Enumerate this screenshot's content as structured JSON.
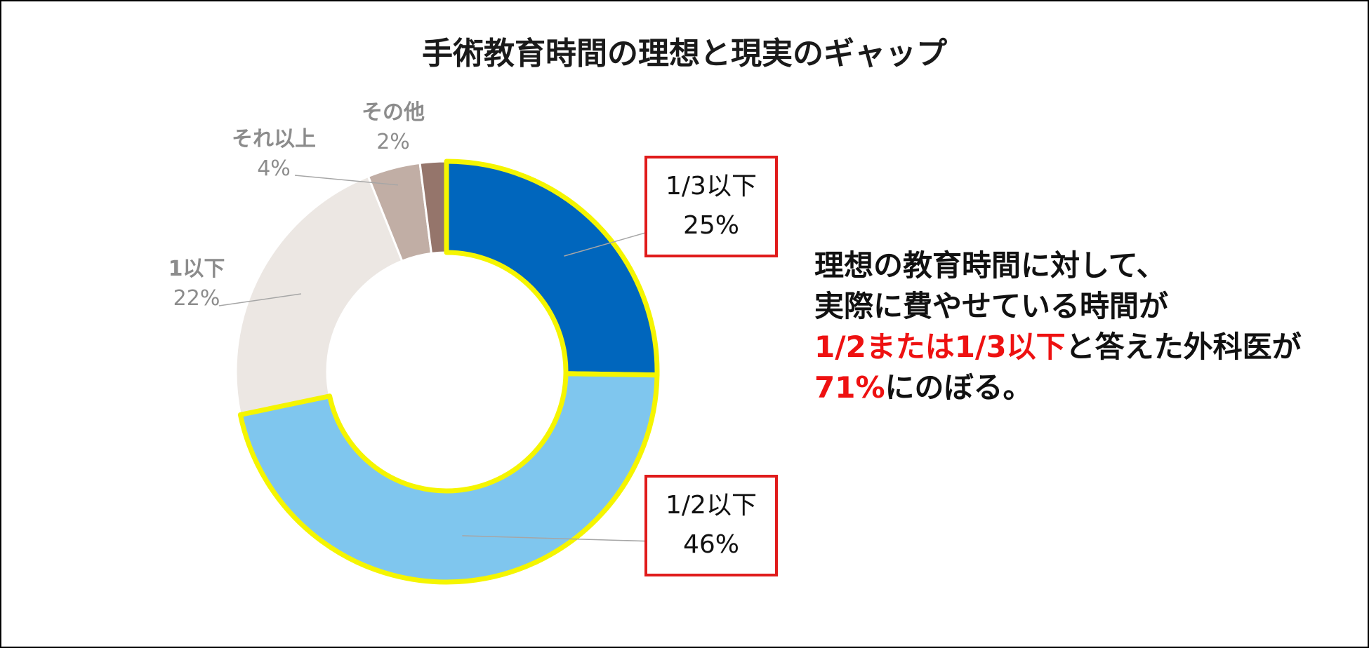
{
  "chart_data": {
    "type": "pie",
    "subtype": "donut",
    "title": "手術教育時間の理想と現実のギャップ",
    "slices": [
      {
        "name": "1/3以下",
        "value": 25,
        "label": "25%",
        "color": "#0066bd",
        "highlight": true
      },
      {
        "name": "1/2以下",
        "value": 46,
        "label": "46%",
        "color": "#7fc6ee",
        "highlight": true
      },
      {
        "name": "1以下",
        "value": 22,
        "label": "22%",
        "color": "#ece7e3",
        "highlight": false
      },
      {
        "name": "それ以上",
        "value": 4,
        "label": "4%",
        "color": "#c1aea5",
        "highlight": false
      },
      {
        "name": "その他",
        "value": 2,
        "label": "2%",
        "color": "#95756b",
        "highlight": false
      }
    ],
    "start_angle_deg": 0,
    "direction": "clockwise",
    "highlight_stroke_color": "#f5f500",
    "label_box_color": "#e01b1b"
  },
  "callout": {
    "line1": "理想の教育時間に対して、",
    "line2": "実際に費やせている時間が",
    "line3_highlight": "1/2または1/3以下",
    "line3_rest": "と答えた外科医が",
    "line4_highlight": "71%",
    "line4_rest": "にのぼる。",
    "highlight_color": "#ee1111"
  }
}
